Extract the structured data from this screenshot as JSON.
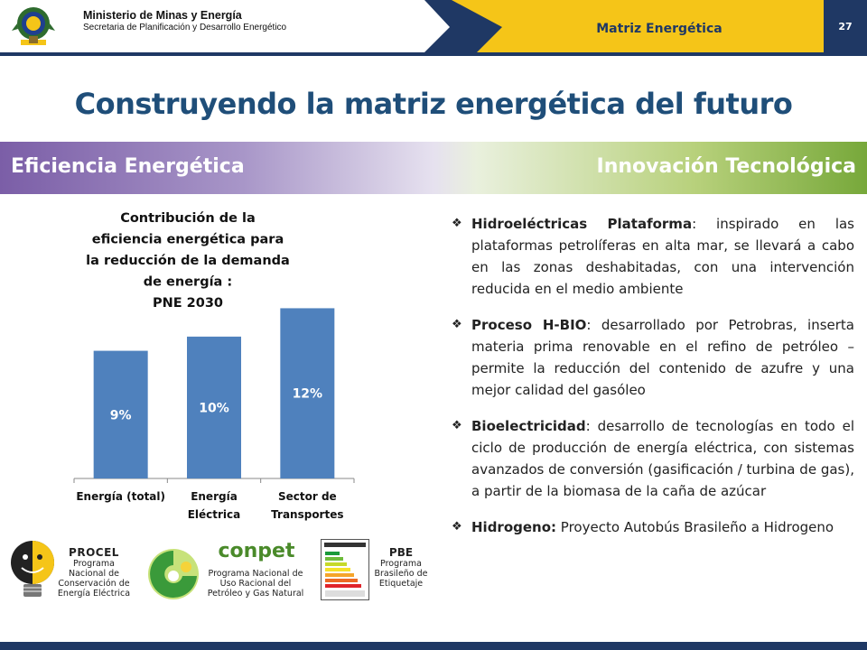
{
  "header": {
    "ministry": "Ministerio de Minas y Energía",
    "secretariat": "Secretaria de Planificación y Desarrollo Energético",
    "section_title": "Matriz Energética",
    "page_number": "27",
    "colors": {
      "navy": "#1f3864",
      "yellow": "#f5c518"
    }
  },
  "title": "Construyendo la matriz energética del futuro",
  "band": {
    "left": "Eficiencia Energética",
    "right": "Innovación Tecnológica"
  },
  "chart_data": {
    "type": "bar",
    "title_lines": [
      "Contribución de la",
      "eficiencia energética para",
      "la reducción de la demanda",
      "de energía :",
      "PNE 2030"
    ],
    "categories": [
      [
        "Energía (total)"
      ],
      [
        "Energía",
        "Eléctrica"
      ],
      [
        "Sector de",
        "Transportes"
      ]
    ],
    "values": [
      9,
      10,
      12
    ],
    "data_labels": [
      "9%",
      "10%",
      "12%"
    ],
    "ylim": [
      0,
      14
    ],
    "bar_color": "#4f81bd",
    "grid": false,
    "legend": "none"
  },
  "logos": {
    "procel": {
      "name": "PROCEL",
      "desc": [
        "Programa",
        "Nacional de",
        "Conservación de",
        "Energía Eléctrica"
      ]
    },
    "conpet": {
      "name": "conpet",
      "desc": [
        "Programa Nacional de",
        "Uso Racional del",
        "Petróleo y Gas Natural"
      ]
    },
    "pbe": {
      "name": "PBE",
      "desc": [
        "Programa",
        "Brasileño de",
        "Etiquetaje"
      ]
    }
  },
  "bullets": [
    {
      "term": "Hidroeléctricas Plataforma",
      "sep": ":",
      "text": " inspirado en las plataformas petrolíferas en alta mar, se llevará a cabo en las zonas deshabitadas, con una intervención reducida en el medio ambiente"
    },
    {
      "term": "Proceso H-BIO",
      "sep": ":",
      "text": " desarrollado por Petrobras, inserta materia prima renovable en el refino de petróleo – permite la reducción del contenido de azufre y una mejor calidad del gasóleo"
    },
    {
      "term": "Bioelectricidad",
      "sep": ":",
      "text": " desarrollo de tecnologías en todo el ciclo de producción de energía eléctrica, con sistemas avanzados de conversión (gasificación / turbina de gas), a partir de la biomasa de la caña de azúcar"
    },
    {
      "term": "Hidrogeno:",
      "sep": "",
      "text": " Proyecto Autobús Brasileño a Hidrogeno"
    }
  ]
}
